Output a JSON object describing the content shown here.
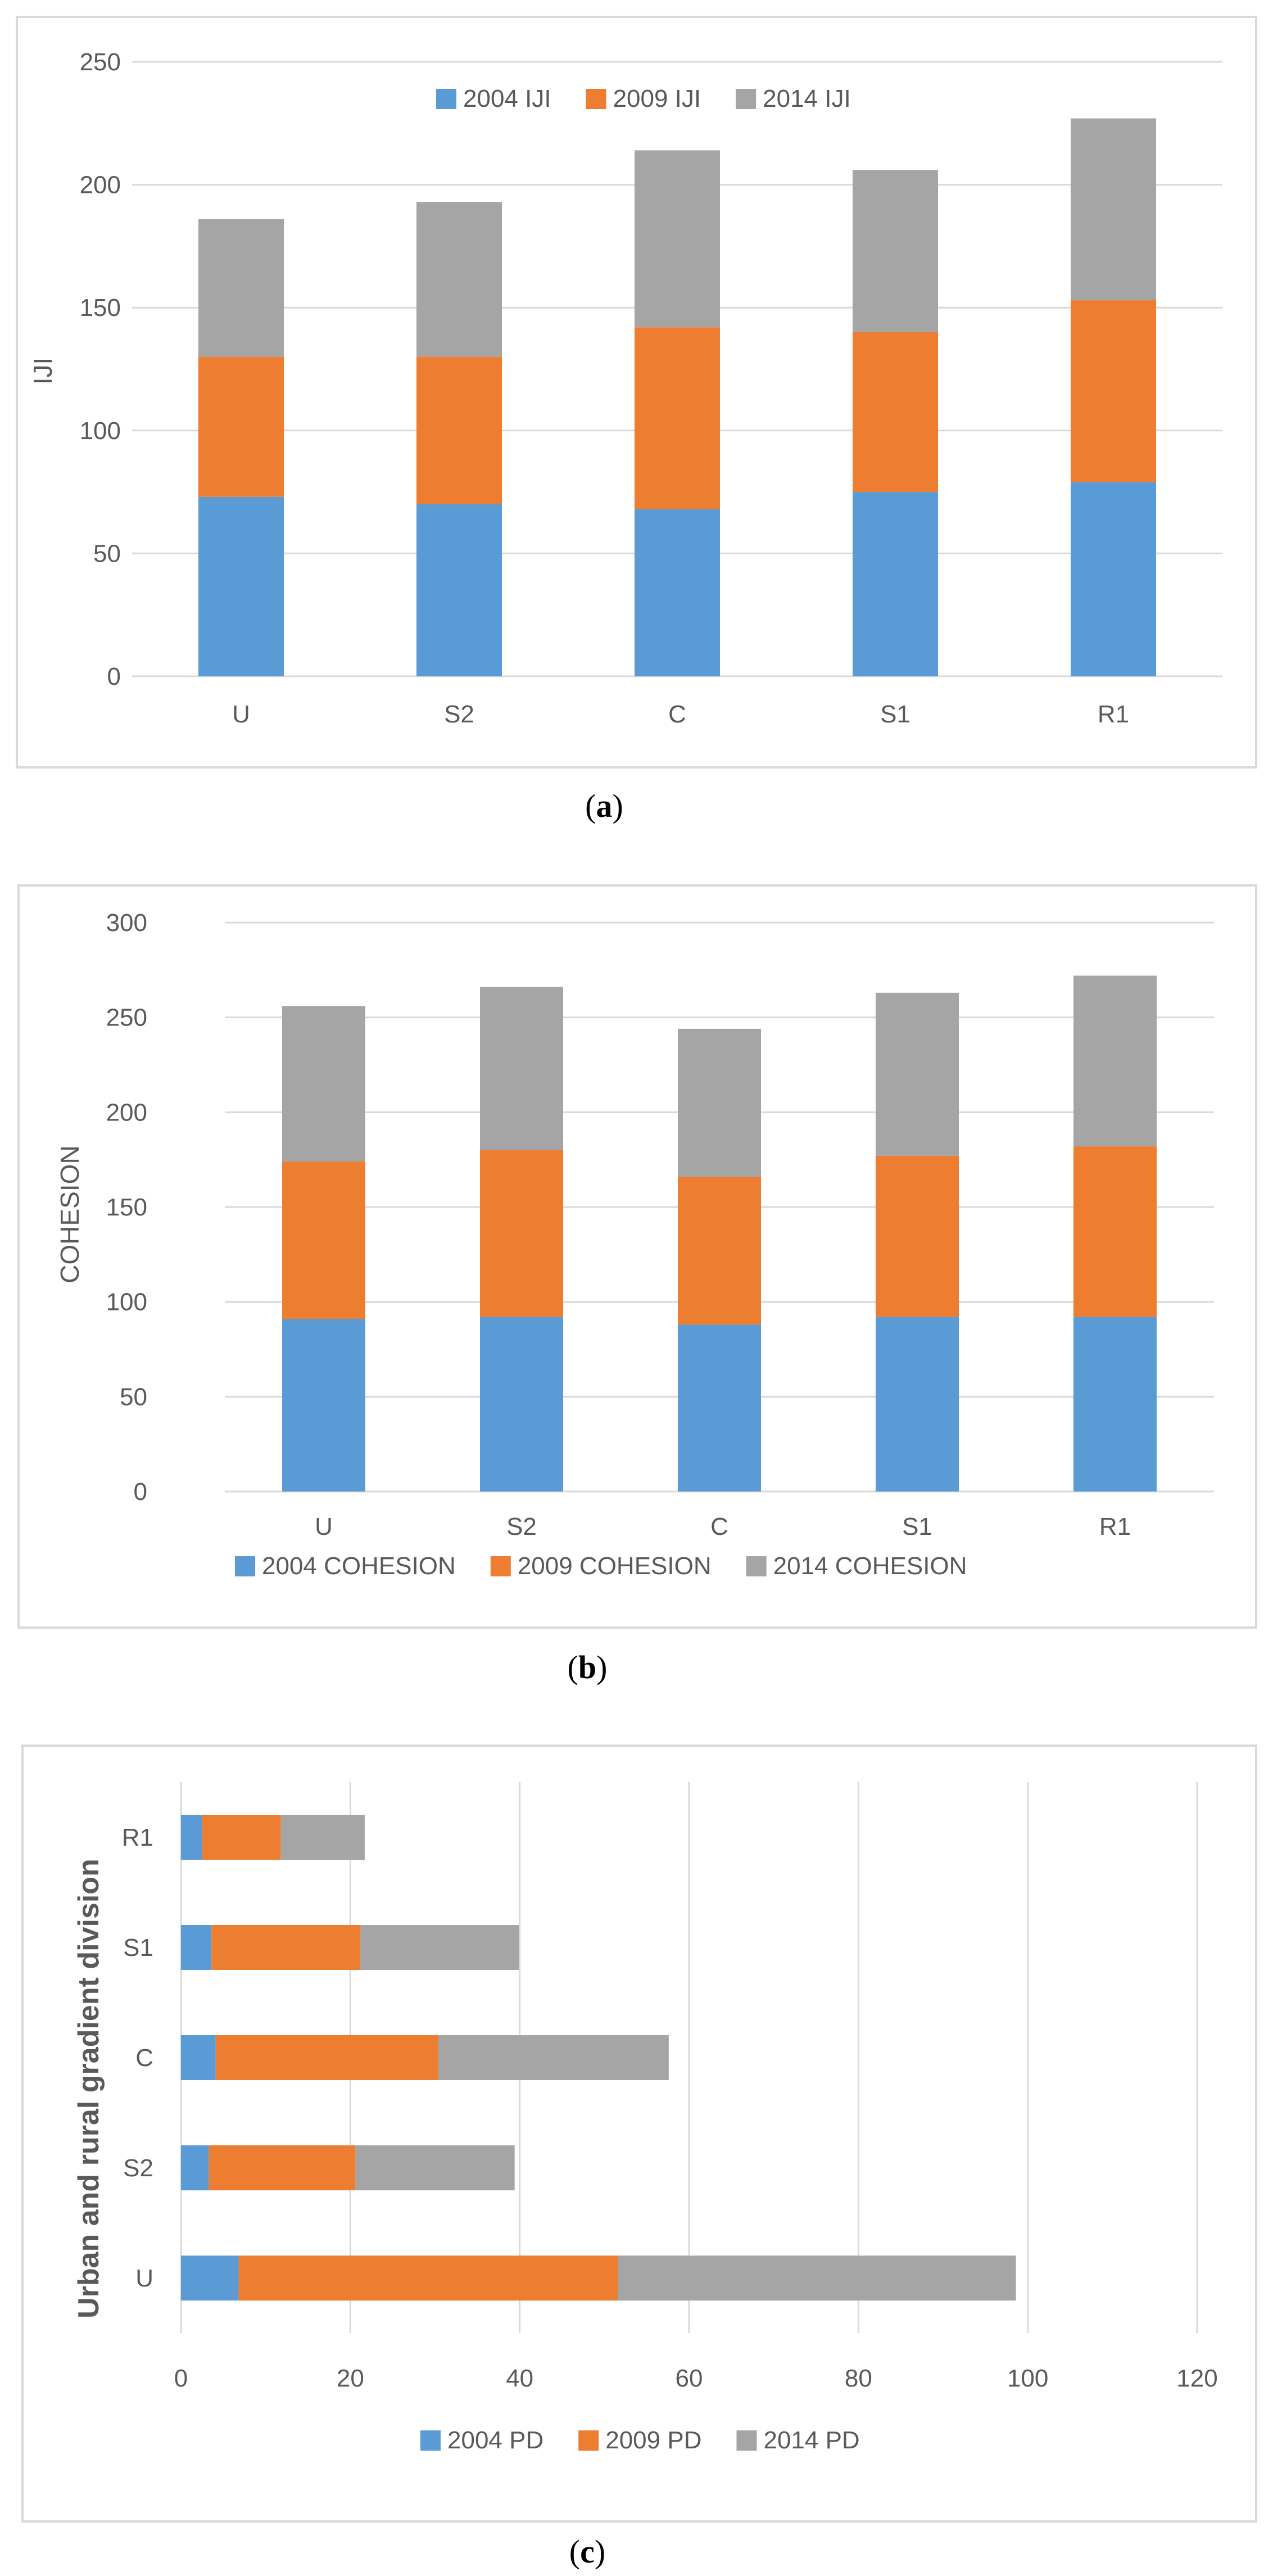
{
  "chart_data": [
    {
      "type": "bar",
      "stacked": true,
      "orientation": "vertical",
      "categories": [
        "U",
        "S2",
        "C",
        "S1",
        "R1"
      ],
      "series": [
        {
          "name": "2004 IJI",
          "values": [
            73,
            70,
            68,
            75,
            79
          ],
          "color": "#5b9bd5"
        },
        {
          "name": "2009 IJI",
          "values": [
            57,
            60,
            74,
            65,
            74
          ],
          "color": "#ed7d31"
        },
        {
          "name": "2014 IJI",
          "values": [
            56,
            63,
            72,
            66,
            74
          ],
          "color": "#a5a5a5"
        }
      ],
      "title": "",
      "xlabel": "",
      "ylabel": "IJI",
      "ylim": [
        0,
        250
      ],
      "yticks": [
        "0",
        "50",
        "100",
        "150",
        "200",
        "250"
      ],
      "grid": true,
      "legend_position": "top",
      "caption_open": "(",
      "caption_letter": "a",
      "caption_close": ")"
    },
    {
      "type": "bar",
      "stacked": true,
      "orientation": "vertical",
      "categories": [
        "U",
        "S2",
        "C",
        "S1",
        "R1"
      ],
      "series": [
        {
          "name": "2004  COHESION",
          "values": [
            91,
            92,
            88,
            92,
            92
          ],
          "color": "#5b9bd5"
        },
        {
          "name": "2009  COHESION",
          "values": [
            83,
            88,
            78,
            85,
            90
          ],
          "color": "#ed7d31"
        },
        {
          "name": "2014  COHESION",
          "values": [
            82,
            86,
            78,
            86,
            90
          ],
          "color": "#a5a5a5"
        }
      ],
      "title": "",
      "xlabel": "",
      "ylabel": "COHESION",
      "ylim": [
        0,
        300
      ],
      "yticks": [
        "0",
        "50",
        "100",
        "150",
        "200",
        "250",
        "300"
      ],
      "grid": true,
      "legend_position": "bottom",
      "caption_open": "(",
      "caption_letter": "b",
      "caption_close": ")"
    },
    {
      "type": "bar",
      "stacked": true,
      "orientation": "horizontal",
      "categories": [
        "U",
        "S2",
        "C",
        "S1",
        "R1"
      ],
      "series": [
        {
          "name": "2004 PD",
          "values": [
            6.8,
            3.3,
            4.1,
            3.6,
            2.5
          ],
          "color": "#5b9bd5"
        },
        {
          "name": "2009 PD",
          "values": [
            44.8,
            17.3,
            26.3,
            17.6,
            9.3
          ],
          "color": "#ed7d31"
        },
        {
          "name": "2014 PD",
          "values": [
            47,
            18.8,
            27.2,
            18.7,
            9.9
          ],
          "color": "#a5a5a5"
        }
      ],
      "title": "",
      "xlabel": "",
      "ylabel": "Urban and rural gradient division",
      "xlim": [
        0,
        120
      ],
      "xticks": [
        "0",
        "20",
        "40",
        "60",
        "80",
        "100",
        "120"
      ],
      "grid": true,
      "legend_position": "bottom",
      "caption_open": "(",
      "caption_letter": "c",
      "caption_close": ")"
    }
  ]
}
